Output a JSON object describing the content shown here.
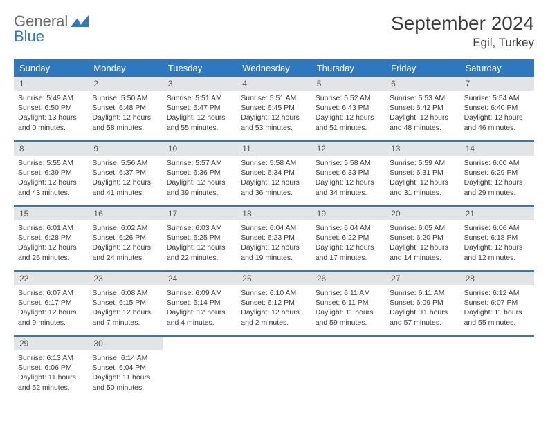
{
  "logo": {
    "word1": "General",
    "word2": "Blue"
  },
  "title": "September 2024",
  "location": "Egil, Turkey",
  "colors": {
    "header_bg": "#2f78bd",
    "header_fg": "#ffffff",
    "daynum_bg": "#e3e4e5",
    "text": "#3a3a3a",
    "logo_gray": "#6a6a6a",
    "logo_blue": "#2f78bd",
    "page_bg": "#ffffff"
  },
  "weekdays": [
    "Sunday",
    "Monday",
    "Tuesday",
    "Wednesday",
    "Thursday",
    "Friday",
    "Saturday"
  ],
  "days": [
    {
      "n": "1",
      "sunrise": "5:49 AM",
      "sunset": "6:50 PM",
      "daylight": "13 hours and 0 minutes."
    },
    {
      "n": "2",
      "sunrise": "5:50 AM",
      "sunset": "6:48 PM",
      "daylight": "12 hours and 58 minutes."
    },
    {
      "n": "3",
      "sunrise": "5:51 AM",
      "sunset": "6:47 PM",
      "daylight": "12 hours and 55 minutes."
    },
    {
      "n": "4",
      "sunrise": "5:51 AM",
      "sunset": "6:45 PM",
      "daylight": "12 hours and 53 minutes."
    },
    {
      "n": "5",
      "sunrise": "5:52 AM",
      "sunset": "6:43 PM",
      "daylight": "12 hours and 51 minutes."
    },
    {
      "n": "6",
      "sunrise": "5:53 AM",
      "sunset": "6:42 PM",
      "daylight": "12 hours and 48 minutes."
    },
    {
      "n": "7",
      "sunrise": "5:54 AM",
      "sunset": "6:40 PM",
      "daylight": "12 hours and 46 minutes."
    },
    {
      "n": "8",
      "sunrise": "5:55 AM",
      "sunset": "6:39 PM",
      "daylight": "12 hours and 43 minutes."
    },
    {
      "n": "9",
      "sunrise": "5:56 AM",
      "sunset": "6:37 PM",
      "daylight": "12 hours and 41 minutes."
    },
    {
      "n": "10",
      "sunrise": "5:57 AM",
      "sunset": "6:36 PM",
      "daylight": "12 hours and 39 minutes."
    },
    {
      "n": "11",
      "sunrise": "5:58 AM",
      "sunset": "6:34 PM",
      "daylight": "12 hours and 36 minutes."
    },
    {
      "n": "12",
      "sunrise": "5:58 AM",
      "sunset": "6:33 PM",
      "daylight": "12 hours and 34 minutes."
    },
    {
      "n": "13",
      "sunrise": "5:59 AM",
      "sunset": "6:31 PM",
      "daylight": "12 hours and 31 minutes."
    },
    {
      "n": "14",
      "sunrise": "6:00 AM",
      "sunset": "6:29 PM",
      "daylight": "12 hours and 29 minutes."
    },
    {
      "n": "15",
      "sunrise": "6:01 AM",
      "sunset": "6:28 PM",
      "daylight": "12 hours and 26 minutes."
    },
    {
      "n": "16",
      "sunrise": "6:02 AM",
      "sunset": "6:26 PM",
      "daylight": "12 hours and 24 minutes."
    },
    {
      "n": "17",
      "sunrise": "6:03 AM",
      "sunset": "6:25 PM",
      "daylight": "12 hours and 22 minutes."
    },
    {
      "n": "18",
      "sunrise": "6:04 AM",
      "sunset": "6:23 PM",
      "daylight": "12 hours and 19 minutes."
    },
    {
      "n": "19",
      "sunrise": "6:04 AM",
      "sunset": "6:22 PM",
      "daylight": "12 hours and 17 minutes."
    },
    {
      "n": "20",
      "sunrise": "6:05 AM",
      "sunset": "6:20 PM",
      "daylight": "12 hours and 14 minutes."
    },
    {
      "n": "21",
      "sunrise": "6:06 AM",
      "sunset": "6:18 PM",
      "daylight": "12 hours and 12 minutes."
    },
    {
      "n": "22",
      "sunrise": "6:07 AM",
      "sunset": "6:17 PM",
      "daylight": "12 hours and 9 minutes."
    },
    {
      "n": "23",
      "sunrise": "6:08 AM",
      "sunset": "6:15 PM",
      "daylight": "12 hours and 7 minutes."
    },
    {
      "n": "24",
      "sunrise": "6:09 AM",
      "sunset": "6:14 PM",
      "daylight": "12 hours and 4 minutes."
    },
    {
      "n": "25",
      "sunrise": "6:10 AM",
      "sunset": "6:12 PM",
      "daylight": "12 hours and 2 minutes."
    },
    {
      "n": "26",
      "sunrise": "6:11 AM",
      "sunset": "6:11 PM",
      "daylight": "11 hours and 59 minutes."
    },
    {
      "n": "27",
      "sunrise": "6:11 AM",
      "sunset": "6:09 PM",
      "daylight": "11 hours and 57 minutes."
    },
    {
      "n": "28",
      "sunrise": "6:12 AM",
      "sunset": "6:07 PM",
      "daylight": "11 hours and 55 minutes."
    },
    {
      "n": "29",
      "sunrise": "6:13 AM",
      "sunset": "6:06 PM",
      "daylight": "11 hours and 52 minutes."
    },
    {
      "n": "30",
      "sunrise": "6:14 AM",
      "sunset": "6:04 PM",
      "daylight": "11 hours and 50 minutes."
    }
  ],
  "labels": {
    "sunrise": "Sunrise: ",
    "sunset": "Sunset: ",
    "daylight": "Daylight: "
  }
}
